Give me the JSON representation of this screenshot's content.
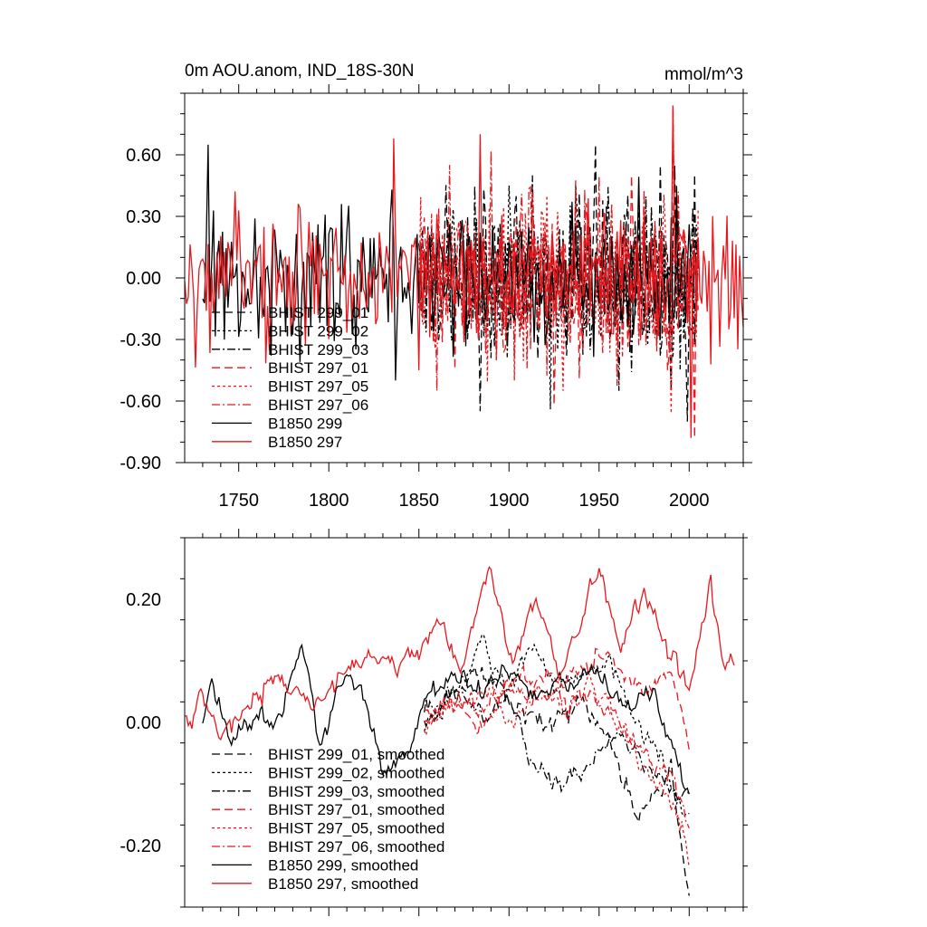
{
  "colors": {
    "black": "#000000",
    "red": "#e8171d"
  },
  "chart_data": [
    {
      "type": "line",
      "title_left": "0m AOU.anom, IND_18S-30N",
      "title_right": "mmol/m^3",
      "xlim": [
        1720,
        2030
      ],
      "ylim": [
        -0.9,
        0.9
      ],
      "xticks": [
        1750,
        1800,
        1850,
        1900,
        1950,
        2000
      ],
      "xtick_labels": [
        "1750",
        "1800",
        "1850",
        "1900",
        "1950",
        "2000"
      ],
      "yticks": [
        0.6,
        0.3,
        0.0,
        -0.3,
        -0.6,
        -0.9
      ],
      "ytick_labels": [
        "0.60",
        "0.30",
        "0.00",
        "-0.30",
        "-0.60",
        "-0.90"
      ],
      "legend_position": "lower-left",
      "series": [
        {
          "name": "BHIST 299_01",
          "color": "black",
          "dash": "dash",
          "x_range": [
            1850,
            2005
          ],
          "seed": 11,
          "sd": 0.2,
          "mean": -0.02,
          "spikes": [
            [
              1884,
              -0.65
            ],
            [
              1948,
              0.65
            ],
            [
              1999,
              -0.7
            ]
          ]
        },
        {
          "name": "BHIST 299_02",
          "color": "black",
          "dash": "dot",
          "x_range": [
            1850,
            2005
          ],
          "seed": 23,
          "sd": 0.18,
          "mean": 0.0,
          "spikes": [
            [
              1900,
              0.45
            ],
            [
              1923,
              -0.64
            ]
          ]
        },
        {
          "name": "BHIST 299_03",
          "color": "black",
          "dash": "dashdot",
          "x_range": [
            1850,
            2005
          ],
          "seed": 37,
          "sd": 0.18,
          "mean": 0.0,
          "spikes": [
            [
              1913,
              0.5
            ],
            [
              1961,
              -0.55
            ]
          ]
        },
        {
          "name": "BHIST 297_01",
          "color": "red",
          "dash": "dash",
          "x_range": [
            1850,
            2005
          ],
          "seed": 41,
          "sd": 0.2,
          "mean": 0.0,
          "spikes": [
            [
              1925,
              -0.62
            ],
            [
              1968,
              0.5
            ],
            [
              2003,
              -0.78
            ]
          ]
        },
        {
          "name": "BHIST 297_05",
          "color": "red",
          "dash": "dot",
          "x_range": [
            1850,
            2005
          ],
          "seed": 53,
          "sd": 0.2,
          "mean": 0.0,
          "spikes": [
            [
              1903,
              -0.5
            ],
            [
              1990,
              -0.66
            ]
          ]
        },
        {
          "name": "BHIST 297_06",
          "color": "red",
          "dash": "dashdot",
          "x_range": [
            1850,
            2005
          ],
          "seed": 67,
          "sd": 0.2,
          "mean": 0.0,
          "spikes": [
            [
              1890,
              0.62
            ],
            [
              1991,
              0.84
            ]
          ]
        },
        {
          "name": "B1850 299",
          "color": "black",
          "dash": "solid",
          "x_range": [
            1730,
            2001
          ],
          "seed": 79,
          "sd": 0.17,
          "mean": 0.0,
          "spikes": [
            [
              1733,
              0.65
            ],
            [
              1837,
              -0.5
            ]
          ]
        },
        {
          "name": "B1850 297",
          "color": "red",
          "dash": "solid",
          "x_range": [
            1720,
            2030
          ],
          "seed": 97,
          "sd": 0.17,
          "mean": 0.01,
          "spikes": [
            [
              1836,
              0.68
            ],
            [
              1850,
              -0.45
            ],
            [
              1884,
              0.7
            ],
            [
              1991,
              0.84
            ],
            [
              2001,
              -0.78
            ]
          ]
        }
      ]
    },
    {
      "type": "line",
      "title_left": "",
      "title_right": "",
      "xlim": [
        1720,
        2030
      ],
      "ylim": [
        -0.3,
        0.3
      ],
      "xticks": [
        1750,
        1800,
        1850,
        1900,
        1950,
        2000
      ],
      "xtick_labels": [],
      "yticks": [
        0.2,
        0.0,
        -0.2
      ],
      "ytick_labels": [
        "0.20",
        "0.00",
        "-0.20"
      ],
      "legend_position": "lower-left",
      "series": [
        {
          "name": "BHIST 299_01, smoothed",
          "color": "black",
          "dash": "dash",
          "x_range": [
            1853,
            2000
          ],
          "seed": 101,
          "anchors": [
            [
              1853,
              -0.01
            ],
            [
              1870,
              0.05
            ],
            [
              1885,
              0.1
            ],
            [
              1900,
              0.03
            ],
            [
              1920,
              0.0
            ],
            [
              1940,
              0.03
            ],
            [
              1955,
              -0.02
            ],
            [
              1970,
              -0.16
            ],
            [
              1980,
              -0.12
            ],
            [
              1990,
              -0.08
            ],
            [
              2000,
              -0.29
            ]
          ]
        },
        {
          "name": "BHIST 299_02, smoothed",
          "color": "black",
          "dash": "dot",
          "x_range": [
            1853,
            2000
          ],
          "seed": 113,
          "anchors": [
            [
              1853,
              0.0
            ],
            [
              1870,
              0.04
            ],
            [
              1885,
              0.14
            ],
            [
              1900,
              0.05
            ],
            [
              1910,
              0.14
            ],
            [
              1925,
              0.05
            ],
            [
              1940,
              0.08
            ],
            [
              1955,
              0.1
            ],
            [
              1970,
              0.0
            ],
            [
              1985,
              -0.05
            ],
            [
              2000,
              -0.15
            ]
          ]
        },
        {
          "name": "BHIST 299_03, smoothed",
          "color": "black",
          "dash": "dashdot",
          "x_range": [
            1853,
            2000
          ],
          "seed": 127,
          "anchors": [
            [
              1853,
              0.02
            ],
            [
              1870,
              0.05
            ],
            [
              1885,
              0.02
            ],
            [
              1900,
              0.04
            ],
            [
              1915,
              -0.08
            ],
            [
              1930,
              -0.1
            ],
            [
              1945,
              -0.06
            ],
            [
              1960,
              -0.02
            ],
            [
              1975,
              -0.07
            ],
            [
              1990,
              -0.1
            ],
            [
              2000,
              -0.12
            ]
          ]
        },
        {
          "name": "BHIST 297_01, smoothed",
          "color": "red",
          "dash": "dash",
          "x_range": [
            1853,
            2000
          ],
          "seed": 131,
          "anchors": [
            [
              1853,
              0.0
            ],
            [
              1870,
              0.03
            ],
            [
              1885,
              0.0
            ],
            [
              1900,
              0.06
            ],
            [
              1915,
              0.08
            ],
            [
              1930,
              0.06
            ],
            [
              1945,
              0.1
            ],
            [
              1960,
              0.1
            ],
            [
              1975,
              0.05
            ],
            [
              1990,
              0.08
            ],
            [
              2000,
              -0.04
            ]
          ]
        },
        {
          "name": "BHIST 297_05, smoothed",
          "color": "red",
          "dash": "dot",
          "x_range": [
            1853,
            2000
          ],
          "seed": 137,
          "anchors": [
            [
              1853,
              0.0
            ],
            [
              1870,
              0.02
            ],
            [
              1885,
              0.04
            ],
            [
              1900,
              0.0
            ],
            [
              1915,
              0.05
            ],
            [
              1930,
              0.02
            ],
            [
              1945,
              0.07
            ],
            [
              1960,
              0.0
            ],
            [
              1975,
              -0.08
            ],
            [
              1990,
              -0.12
            ],
            [
              2000,
              -0.22
            ]
          ]
        },
        {
          "name": "BHIST 297_06, smoothed",
          "color": "red",
          "dash": "dashdot",
          "x_range": [
            1853,
            2000
          ],
          "seed": 149,
          "anchors": [
            [
              1853,
              0.01
            ],
            [
              1870,
              0.03
            ],
            [
              1885,
              0.02
            ],
            [
              1900,
              0.05
            ],
            [
              1915,
              0.04
            ],
            [
              1930,
              0.03
            ],
            [
              1945,
              0.05
            ],
            [
              1960,
              0.0
            ],
            [
              1975,
              -0.05
            ],
            [
              1990,
              -0.08
            ],
            [
              2000,
              -0.15
            ]
          ]
        },
        {
          "name": "B1850 299, smoothed",
          "color": "black",
          "dash": "solid",
          "x_range": [
            1730,
            2000
          ],
          "seed": 151,
          "anchors": [
            [
              1730,
              0.0
            ],
            [
              1735,
              0.08
            ],
            [
              1745,
              -0.02
            ],
            [
              1760,
              0.0
            ],
            [
              1775,
              0.02
            ],
            [
              1785,
              0.13
            ],
            [
              1795,
              -0.04
            ],
            [
              1805,
              0.06
            ],
            [
              1818,
              0.07
            ],
            [
              1830,
              -0.08
            ],
            [
              1845,
              -0.05
            ],
            [
              1855,
              0.05
            ],
            [
              1870,
              0.08
            ],
            [
              1885,
              0.04
            ],
            [
              1900,
              0.08
            ],
            [
              1915,
              0.05
            ],
            [
              1930,
              0.07
            ],
            [
              1950,
              0.08
            ],
            [
              1965,
              0.02
            ],
            [
              1980,
              0.04
            ],
            [
              1990,
              -0.04
            ],
            [
              2000,
              -0.12
            ]
          ]
        },
        {
          "name": "B1850 297, smoothed",
          "color": "red",
          "dash": "solid",
          "x_range": [
            1720,
            2025
          ],
          "seed": 163,
          "anchors": [
            [
              1720,
              0.01
            ],
            [
              1724,
              -0.01
            ],
            [
              1728,
              0.05
            ],
            [
              1735,
              0.0
            ],
            [
              1745,
              -0.01
            ],
            [
              1760,
              0.05
            ],
            [
              1775,
              0.08
            ],
            [
              1790,
              0.02
            ],
            [
              1805,
              0.07
            ],
            [
              1820,
              0.09
            ],
            [
              1835,
              0.1
            ],
            [
              1848,
              0.1
            ],
            [
              1860,
              0.16
            ],
            [
              1875,
              0.08
            ],
            [
              1885,
              0.22
            ],
            [
              1890,
              0.24
            ],
            [
              1900,
              0.1
            ],
            [
              1915,
              0.2
            ],
            [
              1928,
              0.07
            ],
            [
              1940,
              0.16
            ],
            [
              1950,
              0.25
            ],
            [
              1962,
              0.1
            ],
            [
              1975,
              0.22
            ],
            [
              1990,
              0.1
            ],
            [
              2000,
              0.06
            ],
            [
              2012,
              0.23
            ],
            [
              2020,
              0.08
            ],
            [
              2025,
              0.1
            ]
          ]
        }
      ]
    }
  ]
}
